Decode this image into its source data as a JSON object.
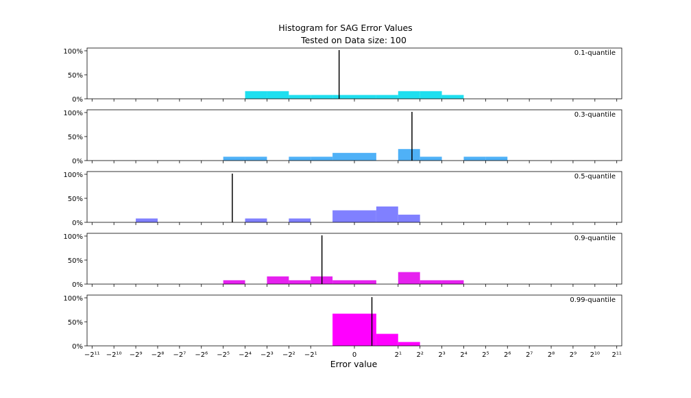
{
  "chart_data": {
    "type": "bar",
    "title": "Histogram for SAG Error Values",
    "subtitle": "Tested on Data size: 100",
    "xlabel": "Error value",
    "x_scale": "symlog base 2",
    "xlim": [
      -2400,
      2400
    ],
    "ylim": [
      0,
      1
    ],
    "y_tick_labels": [
      "0%",
      "50%",
      "100%"
    ],
    "x_tick_labels": [
      "−2¹¹",
      "−2¹⁰",
      "−2⁹",
      "−2⁸",
      "−2⁷",
      "−2⁶",
      "−2⁵",
      "−2⁴",
      "−2³",
      "−2²",
      "−2¹",
      "0",
      "2¹",
      "2²",
      "2³",
      "2⁴",
      "2⁵",
      "2⁶",
      "2⁷",
      "2⁸",
      "2⁹",
      "2¹⁰",
      "2¹¹"
    ],
    "bin_edges": [
      -2048,
      -1024,
      -512,
      -256,
      -128,
      -64,
      -32,
      -16,
      -8,
      -4,
      -2,
      -1,
      0,
      1,
      2,
      4,
      8,
      16,
      32,
      64,
      128,
      256,
      512,
      1024,
      2048
    ],
    "series": [
      {
        "name": "0.1-quantile",
        "color": "#1fdfef",
        "values": [
          0,
          0,
          0,
          0,
          0,
          0,
          0,
          0.16,
          0.16,
          0.08,
          0.08,
          0.08,
          0.08,
          0.08,
          0.16,
          0.16,
          0.08,
          0,
          0,
          0,
          0,
          0,
          0,
          0
        ],
        "marker": -0.7
      },
      {
        "name": "0.3-quantile",
        "color": "#4fb1f7",
        "values": [
          0,
          0,
          0,
          0,
          0,
          0,
          0.08,
          0.08,
          0,
          0.08,
          0.08,
          0.16,
          0.16,
          0,
          0.24,
          0.08,
          0,
          0.08,
          0.08,
          0,
          0,
          0,
          0,
          0
        ],
        "marker": 3.1
      },
      {
        "name": "0.5-quantile",
        "color": "#8080ff",
        "values": [
          0,
          0,
          0.08,
          0,
          0,
          0,
          0,
          0.08,
          0,
          0.08,
          0,
          0.25,
          0.25,
          0.33,
          0.16,
          0,
          0,
          0,
          0,
          0,
          0,
          0,
          0,
          0
        ],
        "marker": -24
      },
      {
        "name": "0.9-quantile",
        "color": "#e621ef",
        "values": [
          0,
          0,
          0,
          0,
          0,
          0,
          0.08,
          0,
          0.16,
          0.08,
          0.16,
          0.08,
          0.08,
          0,
          0.25,
          0.08,
          0.08,
          0,
          0,
          0,
          0,
          0,
          0,
          0
        ],
        "marker": -1.4
      },
      {
        "name": "0.99-quantile",
        "color": "#ff00ff",
        "values": [
          0,
          0,
          0,
          0,
          0,
          0,
          0,
          0,
          0,
          0,
          0,
          0.67,
          0.67,
          0.25,
          0.08,
          0,
          0,
          0,
          0,
          0,
          0,
          0,
          0,
          0
        ],
        "marker": 0.8
      }
    ]
  }
}
